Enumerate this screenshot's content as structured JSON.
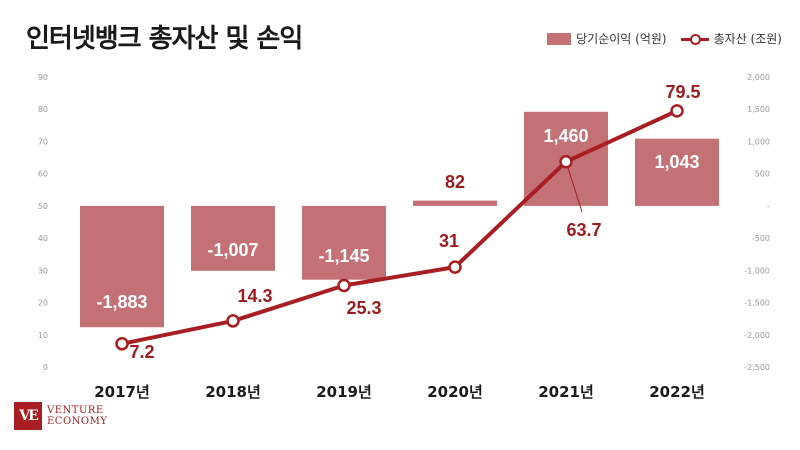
{
  "title": "인터넷뱅크 총자산 및 손익",
  "brand": {
    "mark": "VE",
    "line1": "VENTURE",
    "line2": "ECONOMY"
  },
  "colors": {
    "bar": "#c47176",
    "line": "#a81e22",
    "label_bar": "#ffffff",
    "label_line": "#9e1b1f",
    "axis_tick": "#999999"
  },
  "chart_data": {
    "type": "bar+line",
    "categories": [
      "2017년",
      "2018년",
      "2019년",
      "2020년",
      "2021년",
      "2022년"
    ],
    "series": [
      {
        "name": "당기순이익 (억원)",
        "type": "bar",
        "axis": "right",
        "values": [
          -1883,
          -1007,
          -1145,
          82,
          1460,
          1043
        ],
        "labels": [
          "-1,883",
          "-1,007",
          "-1,145",
          "82",
          "1,460",
          "1,043"
        ]
      },
      {
        "name": "총자산 (조원)",
        "type": "line",
        "axis": "left",
        "values": [
          7.2,
          14.3,
          25.3,
          31,
          63.7,
          79.5
        ],
        "labels": [
          "7.2",
          "14.3",
          "25.3",
          "31",
          "63.7",
          "79.5"
        ]
      }
    ],
    "y_left": {
      "range": [
        0,
        90
      ],
      "ticks": [
        0,
        10,
        20,
        30,
        40,
        50,
        60,
        70,
        80,
        90
      ],
      "tick_labels": [
        "0",
        "10",
        "20",
        "30",
        "40",
        "50",
        "60",
        "70",
        "80",
        "90"
      ]
    },
    "y_right": {
      "range": [
        -2500,
        2000
      ],
      "ticks": [
        2000,
        1500,
        1000,
        500,
        0,
        -500,
        -1000,
        -1500,
        -2000,
        -2500
      ],
      "tick_labels": [
        "2,000",
        "1,500",
        "1,000",
        "500",
        "-",
        "-500",
        "-1,000",
        "-1,500",
        "-2,000",
        "-2,500"
      ]
    },
    "grid": false,
    "legend_position": "top-right"
  }
}
